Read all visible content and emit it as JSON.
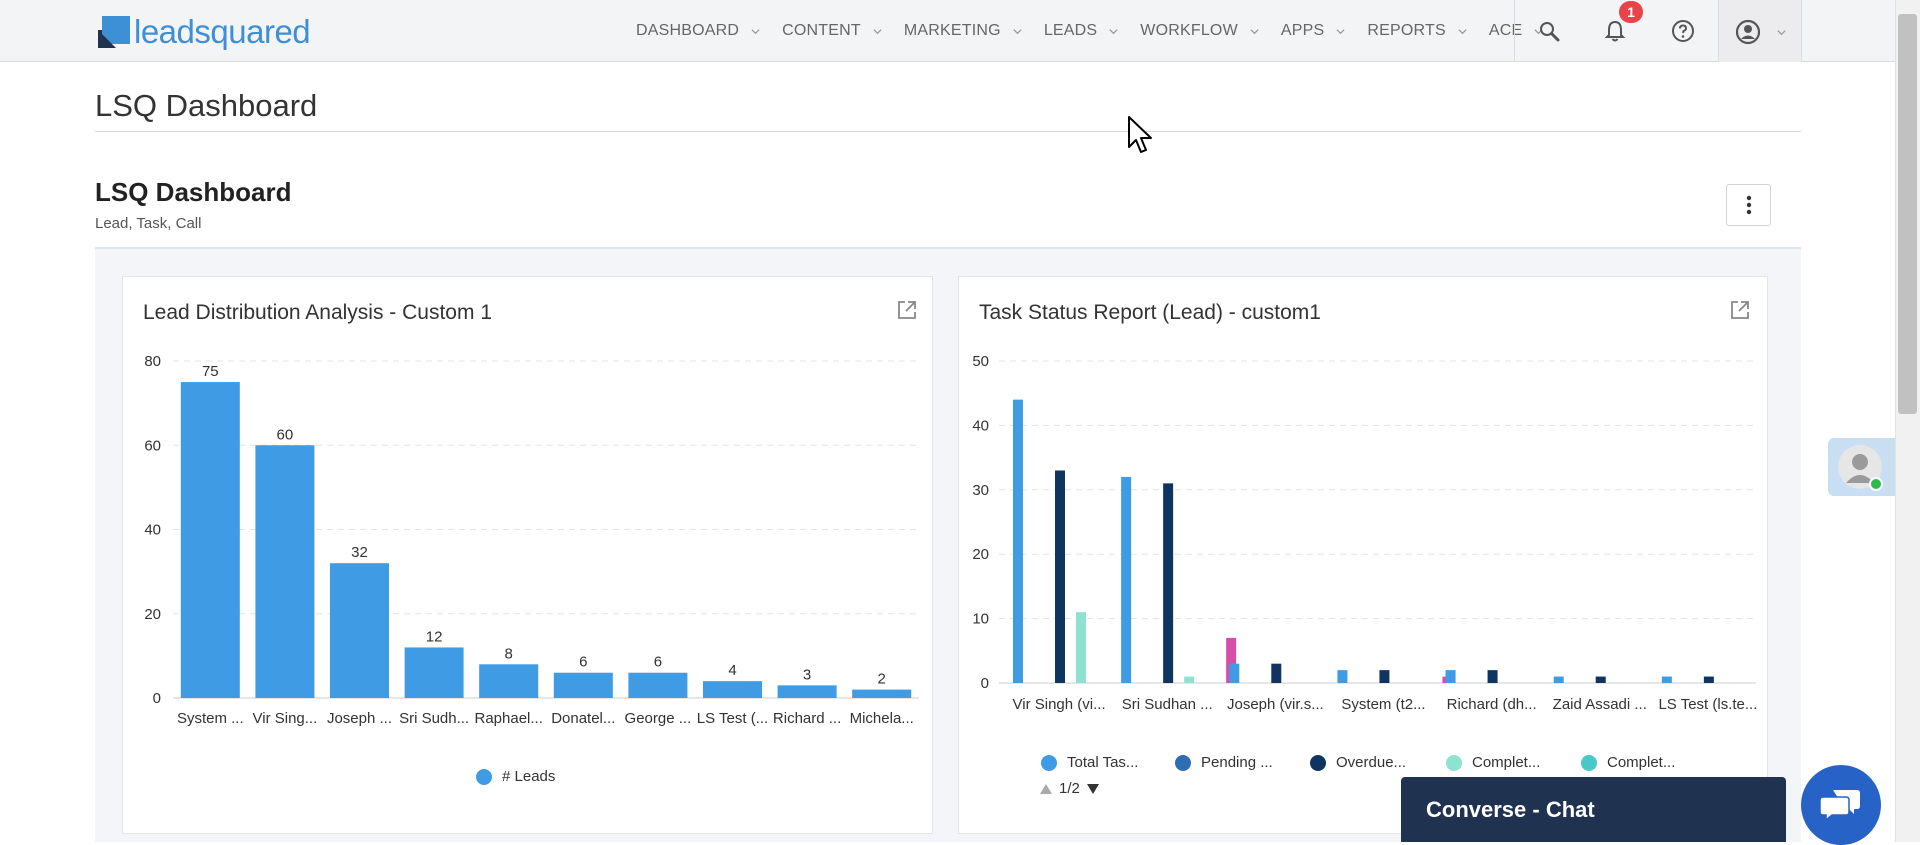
{
  "brand": {
    "logo_text": "leadsquared",
    "accent": "#3d8fd6"
  },
  "nav": {
    "items": [
      {
        "label": "DASHBOARD"
      },
      {
        "label": "CONTENT"
      },
      {
        "label": "MARKETING"
      },
      {
        "label": "LEADS"
      },
      {
        "label": "WORKFLOW"
      },
      {
        "label": "APPS"
      },
      {
        "label": "REPORTS"
      },
      {
        "label": "ACE"
      }
    ],
    "icons": [
      "search-icon",
      "bell-icon",
      "help-icon",
      "user-icon"
    ],
    "notification_count": "1"
  },
  "page": {
    "title": "LSQ Dashboard"
  },
  "dashboard": {
    "title": "LSQ Dashboard",
    "subtitle": "Lead, Task, Call"
  },
  "cards": {
    "lead_distribution": {
      "title": "Lead Distribution Analysis - Custom 1"
    },
    "task_status": {
      "title": "Task Status Report (Lead) - custom1",
      "pager": "1/2"
    }
  },
  "chart_data": [
    {
      "type": "bar",
      "title": "Lead Distribution Analysis - Custom 1",
      "categories": [
        "System ...",
        "Vir Sing...",
        "Joseph ...",
        "Sri Sudh...",
        "Raphael...",
        "Donatel...",
        "George ...",
        "LS Test (...",
        "Richard ...",
        "Michela..."
      ],
      "series": [
        {
          "name": "# Leads",
          "values": [
            75,
            60,
            32,
            12,
            8,
            6,
            6,
            4,
            3,
            2
          ],
          "color": "#3f9be4"
        }
      ],
      "ylim": [
        0,
        80
      ],
      "yticks": [
        0,
        20,
        40,
        60,
        80
      ],
      "grid": true,
      "legend": "bottom"
    },
    {
      "type": "bar",
      "title": "Task Status Report (Lead) - custom1",
      "categories": [
        "Vir Singh (vi...",
        "Sri Sudhan ...",
        "Joseph (vir.s...",
        "System (t2...",
        "Richard (dh...",
        "Zaid Assadi ...",
        "LS Test (ls.te..."
      ],
      "series": [
        {
          "name": "Total Tas...",
          "color": "#3f9be4",
          "values": [
            44,
            32,
            3,
            2,
            2,
            1,
            1
          ]
        },
        {
          "name": "Pending ...",
          "color": "#2e6db4",
          "values": [
            0,
            0,
            0,
            0,
            0,
            0,
            0
          ]
        },
        {
          "name": "Overdue...",
          "color": "#0f3461",
          "values": [
            33,
            31,
            3,
            2,
            2,
            1,
            1
          ]
        },
        {
          "name": "Complet...",
          "color": "#8de3d0",
          "values": [
            11,
            1,
            0,
            0,
            0,
            0,
            0
          ]
        },
        {
          "name": "Complet...",
          "color": "#4ac7c7",
          "values": [
            0,
            0,
            0,
            0,
            0,
            0,
            0
          ]
        },
        {
          "name": "",
          "color": "#d44fa8",
          "values": [
            0,
            7,
            0,
            1,
            0,
            0,
            0
          ]
        }
      ],
      "ylim": [
        0,
        50
      ],
      "yticks": [
        0,
        10,
        20,
        30,
        40,
        50
      ],
      "grid": true,
      "legend": "bottom"
    }
  ],
  "chat": {
    "label": "Converse - Chat"
  }
}
